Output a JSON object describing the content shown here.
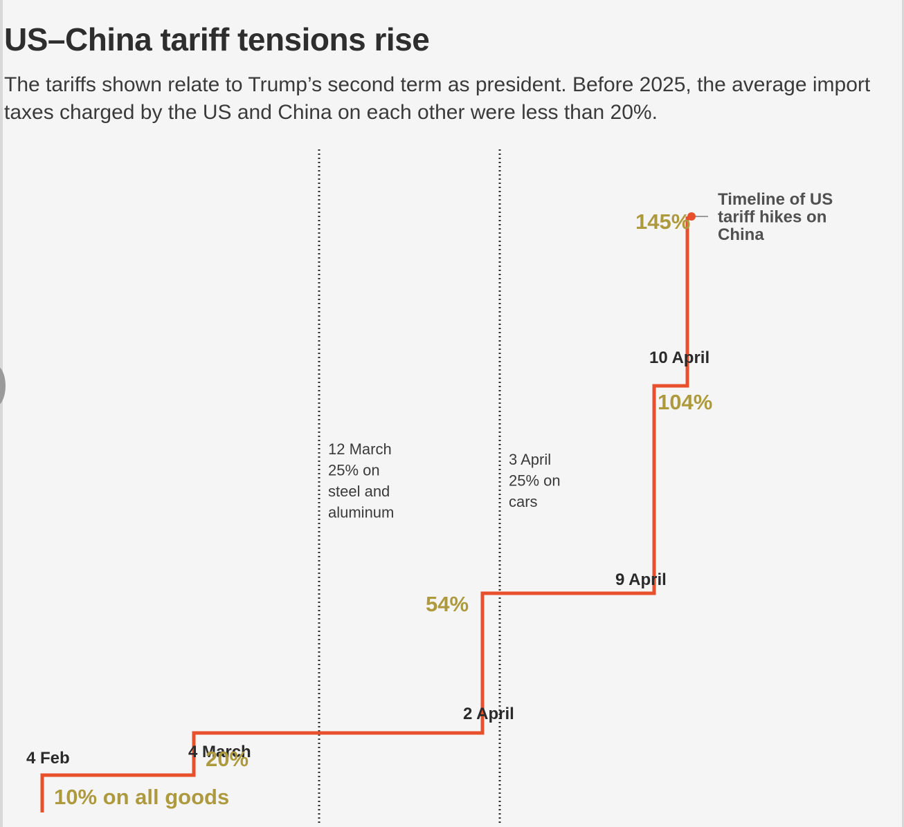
{
  "header": {
    "title": "US–China tariff tensions rise",
    "subtitle": "The tariffs shown relate to Trump’s second term as president. Before 2025, the average import taxes charged by the US and China on each other were less than 20%."
  },
  "chart_data": {
    "type": "line",
    "step": true,
    "grid": false,
    "y_axis_shown": false,
    "ylim": [
      0,
      160
    ],
    "x_timeline": "2025",
    "series": [
      {
        "name": "Timeline of US tariff hikes on China",
        "color": "#e8502b",
        "points": [
          {
            "date": "4 Feb",
            "x": "2025-02-04",
            "y": 10,
            "label": "10% on all goods"
          },
          {
            "date": "4 March",
            "x": "2025-03-04",
            "y": 20,
            "label": "20%"
          },
          {
            "date": "2 April",
            "x": "2025-04-02",
            "y": 54,
            "label": "54%"
          },
          {
            "date": "9 April",
            "x": "2025-04-09",
            "y": 104,
            "label": "104%"
          },
          {
            "date": "10 April",
            "x": "2025-04-10",
            "y": 145,
            "label": "145%"
          }
        ]
      }
    ],
    "events": [
      {
        "x": "2025-03-12",
        "lines": [
          "12 March",
          "25% on",
          "steel and",
          "aluminum"
        ]
      },
      {
        "x": "2025-04-03",
        "lines": [
          "3 April",
          "25% on",
          "cars"
        ]
      }
    ],
    "marker_color": "#e8502b",
    "value_label_color": "#ae9a3e"
  }
}
